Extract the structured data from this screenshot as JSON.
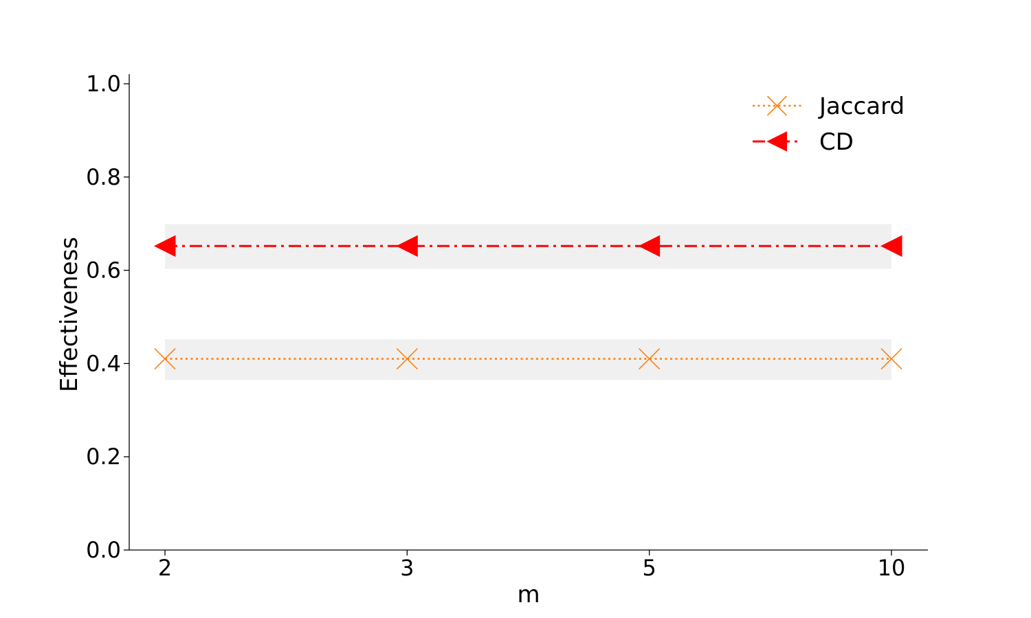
{
  "chart_data": {
    "type": "line",
    "title": "",
    "xlabel": "m",
    "ylabel": "Effectiveness",
    "categories": [
      "2",
      "3",
      "5",
      "10"
    ],
    "ylim": [
      0.0,
      1.0
    ],
    "yticks": [
      "0.0",
      "0.2",
      "0.4",
      "0.6",
      "0.8",
      "1.0"
    ],
    "grid": false,
    "legend_position": "top-right",
    "series": [
      {
        "name": "Jaccard",
        "values": [
          0.41,
          0.41,
          0.41,
          0.41
        ],
        "band": [
          0.365,
          0.452
        ],
        "color": "#ff7f0e",
        "line_style": "dotted",
        "marker": "x"
      },
      {
        "name": "CD",
        "values": [
          0.652,
          0.652,
          0.652,
          0.652
        ],
        "band": [
          0.603,
          0.699
        ],
        "color": "#ff0000",
        "line_style": "dashdot",
        "marker": "triangle-left"
      }
    ],
    "band_color": "#f0f0f0"
  }
}
